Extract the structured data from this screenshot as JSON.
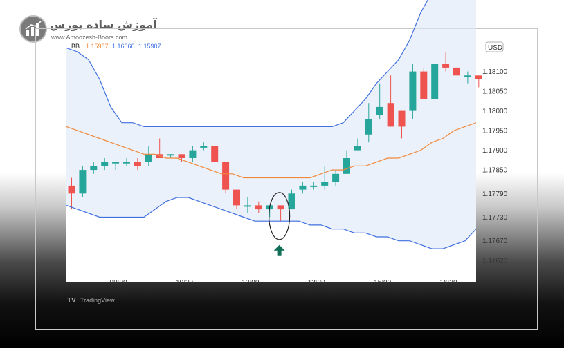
{
  "header": {
    "site_title": "آموزش ساده بورس",
    "site_url": "www.Amoozesh-Boors.com"
  },
  "chart_data": {
    "type": "candlestick",
    "indicator": {
      "label": "BB",
      "basis": "1.15987",
      "upper": "1.16066",
      "lower": "1.15907",
      "basis_color": "#f0883a",
      "band_color": "#3f6fe0"
    },
    "currency_label": "USD",
    "ylim": [
      1.1758,
      1.1818
    ],
    "yticks": [
      "1.18100",
      "1.18050",
      "1.18000",
      "1.17950",
      "1.17900",
      "1.17850",
      "1.17790",
      "1.17730",
      "1.17670",
      "1.17620"
    ],
    "ytick_values": [
      1.181,
      1.1805,
      1.18,
      1.1795,
      1.179,
      1.1785,
      1.1779,
      1.1773,
      1.1767,
      1.1762
    ],
    "xticks": [
      "09:00",
      "10:30",
      "12:00",
      "13:30",
      "15:00",
      "16:30"
    ],
    "xtick_index": [
      4.25,
      10.25,
      16.25,
      22.25,
      28.25,
      34.25
    ],
    "watermark": "TradingView",
    "up_color": "#26a69a",
    "down_color": "#ef5350",
    "candles": [
      {
        "o": 1.1781,
        "h": 1.1783,
        "l": 1.1775,
        "c": 1.1779
      },
      {
        "o": 1.1779,
        "h": 1.1786,
        "l": 1.1778,
        "c": 1.1785
      },
      {
        "o": 1.1785,
        "h": 1.1787,
        "l": 1.1784,
        "c": 1.1786
      },
      {
        "o": 1.1786,
        "h": 1.1788,
        "l": 1.1785,
        "c": 1.1787
      },
      {
        "o": 1.1787,
        "h": 1.1787,
        "l": 1.1785,
        "c": 1.1787
      },
      {
        "o": 1.1787,
        "h": 1.1788,
        "l": 1.1786,
        "c": 1.1787
      },
      {
        "o": 1.1787,
        "h": 1.1788,
        "l": 1.1785,
        "c": 1.1786
      },
      {
        "o": 1.1787,
        "h": 1.1791,
        "l": 1.1786,
        "c": 1.1789
      },
      {
        "o": 1.1789,
        "h": 1.1793,
        "l": 1.1788,
        "c": 1.1788
      },
      {
        "o": 1.1789,
        "h": 1.1789,
        "l": 1.1788,
        "c": 1.1789
      },
      {
        "o": 1.1789,
        "h": 1.1789,
        "l": 1.1787,
        "c": 1.1788
      },
      {
        "o": 1.1788,
        "h": 1.1791,
        "l": 1.1787,
        "c": 1.179
      },
      {
        "o": 1.1791,
        "h": 1.1792,
        "l": 1.179,
        "c": 1.1791
      },
      {
        "o": 1.1791,
        "h": 1.1791,
        "l": 1.1787,
        "c": 1.1787
      },
      {
        "o": 1.1787,
        "h": 1.1787,
        "l": 1.1779,
        "c": 1.178
      },
      {
        "o": 1.178,
        "h": 1.178,
        "l": 1.1775,
        "c": 1.1776
      },
      {
        "o": 1.1776,
        "h": 1.1778,
        "l": 1.1774,
        "c": 1.1776
      },
      {
        "o": 1.1776,
        "h": 1.1777,
        "l": 1.1774,
        "c": 1.1775
      },
      {
        "o": 1.1775,
        "h": 1.1776,
        "l": 1.1773,
        "c": 1.1776
      },
      {
        "o": 1.1776,
        "h": 1.1776,
        "l": 1.1772,
        "c": 1.1775
      },
      {
        "o": 1.1775,
        "h": 1.178,
        "l": 1.1775,
        "c": 1.1779
      },
      {
        "o": 1.178,
        "h": 1.1782,
        "l": 1.1779,
        "c": 1.1781
      },
      {
        "o": 1.1781,
        "h": 1.1782,
        "l": 1.178,
        "c": 1.1781
      },
      {
        "o": 1.1781,
        "h": 1.1786,
        "l": 1.178,
        "c": 1.1782
      },
      {
        "o": 1.1782,
        "h": 1.1785,
        "l": 1.1781,
        "c": 1.1784
      },
      {
        "o": 1.1784,
        "h": 1.179,
        "l": 1.1784,
        "c": 1.1788
      },
      {
        "o": 1.179,
        "h": 1.1793,
        "l": 1.179,
        "c": 1.1791
      },
      {
        "o": 1.1794,
        "h": 1.1802,
        "l": 1.1792,
        "c": 1.1798
      },
      {
        "o": 1.1799,
        "h": 1.1807,
        "l": 1.1798,
        "c": 1.1801
      },
      {
        "o": 1.1802,
        "h": 1.1809,
        "l": 1.1796,
        "c": 1.1796
      },
      {
        "o": 1.18,
        "h": 1.18,
        "l": 1.1793,
        "c": 1.1796
      },
      {
        "o": 1.18,
        "h": 1.1812,
        "l": 1.1798,
        "c": 1.181
      },
      {
        "o": 1.181,
        "h": 1.1811,
        "l": 1.1803,
        "c": 1.1803
      },
      {
        "o": 1.1803,
        "h": 1.1812,
        "l": 1.1803,
        "c": 1.1812
      },
      {
        "o": 1.1812,
        "h": 1.1815,
        "l": 1.181,
        "c": 1.1811
      },
      {
        "o": 1.1811,
        "h": 1.1811,
        "l": 1.1809,
        "c": 1.1809
      },
      {
        "o": 1.1809,
        "h": 1.181,
        "l": 1.1807,
        "c": 1.1809
      },
      {
        "o": 1.1809,
        "h": 1.1809,
        "l": 1.1806,
        "c": 1.1808
      }
    ],
    "upper_band": [
      1.1816,
      1.1815,
      1.1813,
      1.1808,
      1.1801,
      1.1797,
      1.1797,
      1.1796,
      1.1796,
      1.1796,
      1.1796,
      1.1796,
      1.1796,
      1.1796,
      1.1796,
      1.1796,
      1.1796,
      1.1796,
      1.1796,
      1.1796,
      1.1796,
      1.1796,
      1.1796,
      1.1796,
      1.1796,
      1.1797,
      1.18,
      1.1803,
      1.1807,
      1.181,
      1.1813,
      1.1818,
      1.1825,
      1.183,
      1.1832,
      1.1832,
      1.1832,
      1.1832
    ],
    "basis_band": [
      1.1796,
      1.1795,
      1.1794,
      1.1793,
      1.1792,
      1.1791,
      1.179,
      1.1789,
      1.1789,
      1.1788,
      1.1788,
      1.1787,
      1.1786,
      1.1785,
      1.1784,
      1.1784,
      1.1783,
      1.1783,
      1.1783,
      1.1783,
      1.1783,
      1.1783,
      1.1783,
      1.1784,
      1.1785,
      1.1785,
      1.1786,
      1.1786,
      1.1787,
      1.1788,
      1.1788,
      1.1789,
      1.179,
      1.1792,
      1.1793,
      1.1795,
      1.1796,
      1.1797
    ],
    "lower_band": [
      1.1776,
      1.1775,
      1.1774,
      1.1773,
      1.1773,
      1.1773,
      1.1773,
      1.1773,
      1.1775,
      1.1777,
      1.1778,
      1.1778,
      1.1777,
      1.1776,
      1.1775,
      1.1774,
      1.1773,
      1.1772,
      1.1772,
      1.1772,
      1.1772,
      1.1772,
      1.1771,
      1.1771,
      1.177,
      1.177,
      1.1769,
      1.1769,
      1.1768,
      1.1768,
      1.1767,
      1.1767,
      1.1766,
      1.1765,
      1.1765,
      1.1766,
      1.1767,
      1.177
    ],
    "highlighted_candle_index": 19
  }
}
